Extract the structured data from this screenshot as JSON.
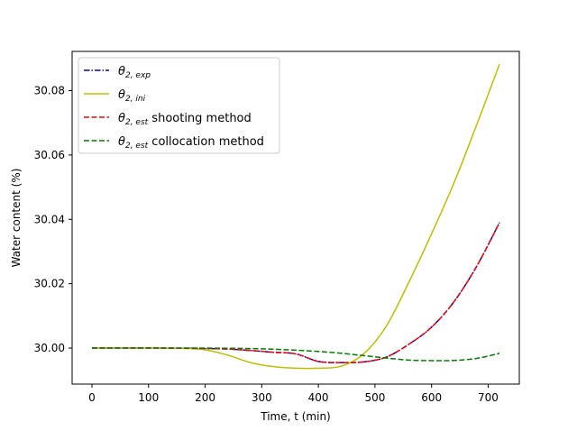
{
  "chart_data": {
    "type": "line",
    "title": "",
    "xlabel": "Time, t (min)",
    "ylabel": "Water content (%)",
    "xlim": [
      -35,
      755
    ],
    "ylim": [
      29.9888,
      30.0922
    ],
    "xticks": [
      0,
      100,
      200,
      300,
      400,
      500,
      600,
      700
    ],
    "xtick_labels": [
      "0",
      "100",
      "200",
      "300",
      "400",
      "500",
      "600",
      "700"
    ],
    "yticks": [
      30.0,
      30.02,
      30.04,
      30.06,
      30.08
    ],
    "ytick_labels": [
      "30.00",
      "30.02",
      "30.04",
      "30.06",
      "30.08"
    ],
    "grid": false,
    "legend_position": "upper-left",
    "x": [
      0,
      40,
      80,
      120,
      160,
      200,
      240,
      280,
      320,
      360,
      400,
      440,
      480,
      520,
      560,
      600,
      640,
      680,
      720
    ],
    "series": [
      {
        "name": "θ2,exp",
        "legend_main": "θ",
        "legend_sub": "2, exp",
        "legend_suffix": "",
        "color": "#0000bf",
        "dash": "dashdot",
        "values": [
          30.0,
          30.0,
          30.0,
          30.0,
          29.99995,
          29.99985,
          29.9997,
          29.99925,
          29.9987,
          29.9982,
          29.99585,
          29.9955,
          29.9957,
          29.9972,
          30.0012,
          30.0065,
          30.0145,
          30.0255,
          30.039
        ]
      },
      {
        "name": "θ2,ini",
        "legend_main": "θ",
        "legend_sub": "2, ini",
        "legend_suffix": "",
        "color": "#bfbf00",
        "dash": "solid",
        "values": [
          30.0,
          30.0,
          30.0,
          30.0,
          29.9999,
          29.99945,
          29.9978,
          29.9955,
          29.99425,
          29.99375,
          29.99375,
          29.99435,
          29.9982,
          30.0068,
          30.0205,
          30.0355,
          30.0515,
          30.0695,
          30.0882
        ]
      },
      {
        "name": "θ2,est shooting method",
        "legend_main": "θ",
        "legend_sub": "2, est",
        "legend_suffix": " shooting method",
        "color": "#ff0000",
        "dash": "dashed",
        "values": [
          30.0,
          30.0,
          30.0,
          30.0,
          29.99995,
          29.99985,
          29.9997,
          29.99925,
          29.9987,
          29.9982,
          29.99585,
          29.9955,
          29.9957,
          29.9972,
          30.0012,
          30.0065,
          30.0145,
          30.0255,
          30.039
        ]
      },
      {
        "name": "θ2,est collocation method",
        "legend_main": "θ",
        "legend_sub": "2, est",
        "legend_suffix": " collocation method",
        "color": "#008000",
        "dash": "dashed",
        "values": [
          30.0,
          30.0,
          30.0,
          30.0,
          30.0,
          30.0,
          29.99995,
          29.99985,
          29.99965,
          29.99935,
          29.99895,
          29.9984,
          29.99765,
          29.9969,
          29.99625,
          29.9961,
          29.99615,
          29.9968,
          29.99835
        ]
      }
    ]
  }
}
